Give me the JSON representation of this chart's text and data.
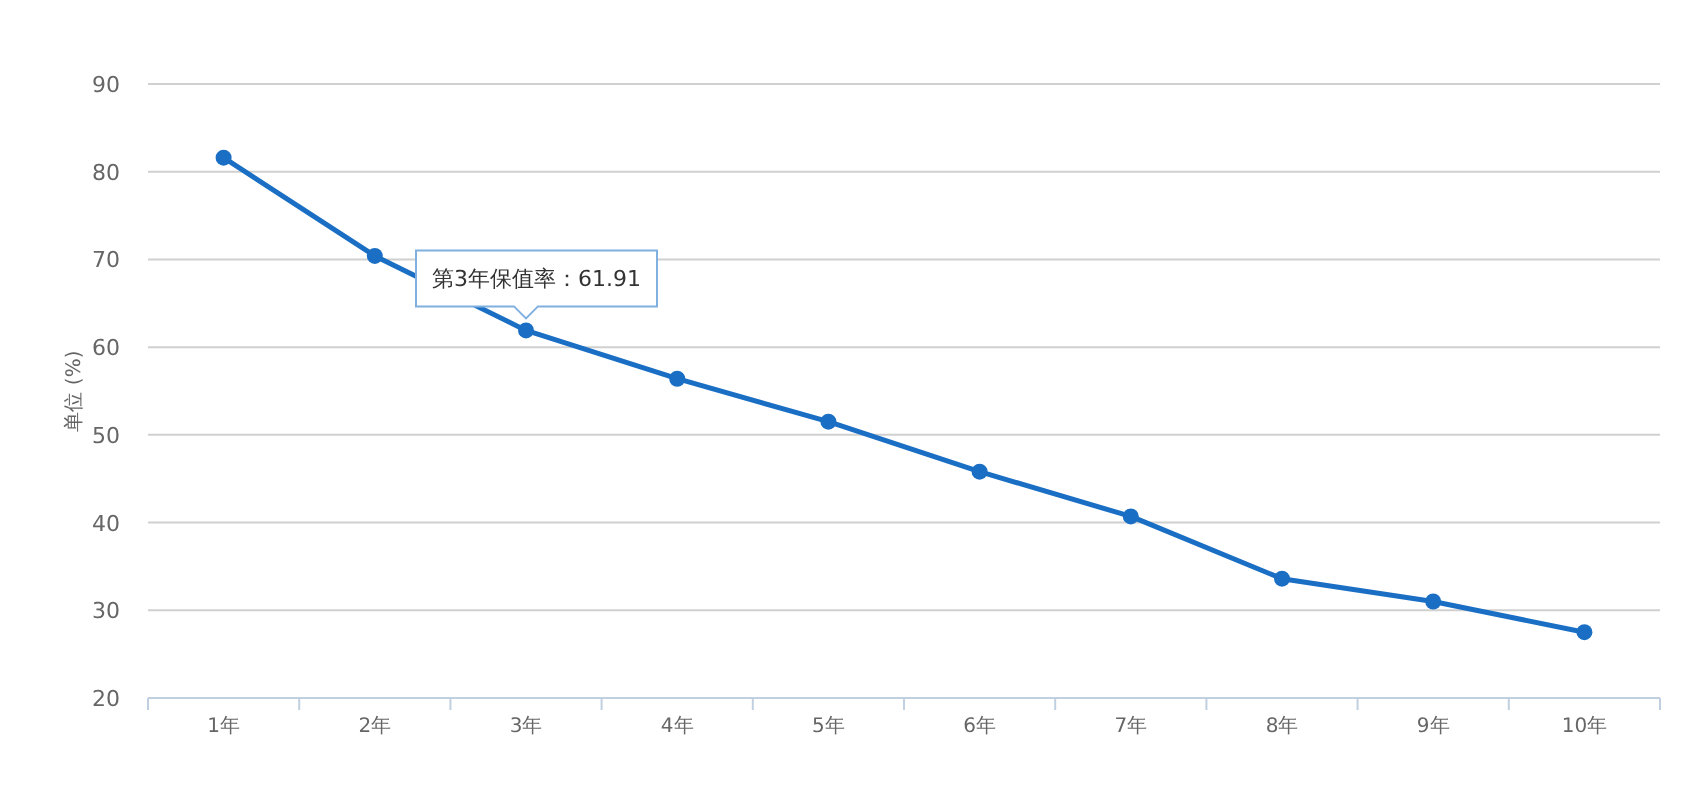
{
  "chart_data": {
    "type": "line",
    "ylabel": "单位 (%)",
    "categories": [
      "1年",
      "2年",
      "3年",
      "4年",
      "5年",
      "6年",
      "7年",
      "8年",
      "9年",
      "10年"
    ],
    "series": [
      {
        "color": "#1a6fc4",
        "values": [
          81.6,
          70.4,
          61.91,
          56.4,
          51.5,
          45.8,
          40.7,
          33.6,
          31.0,
          27.5
        ]
      }
    ],
    "ylim": [
      20,
      90
    ],
    "yticks": [
      20,
      30,
      40,
      50,
      60,
      70,
      80,
      90
    ],
    "grid": "y",
    "marker": "circle",
    "line_style": "solid",
    "annotations": [
      {
        "text": "第3年保值率：61.91",
        "x": "3年",
        "y": 61.91
      }
    ]
  }
}
